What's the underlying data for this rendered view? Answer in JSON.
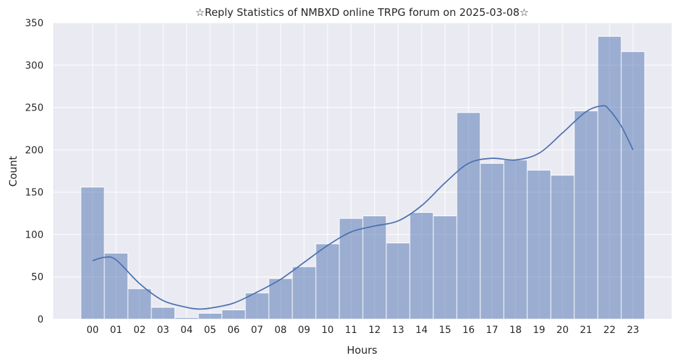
{
  "chart_data": {
    "type": "bar",
    "title": "☆Reply Statistics of NMBXD online TRPG forum on 2025-03-08☆",
    "xlabel": "Hours",
    "ylabel": "Count",
    "ylim": [
      0,
      350
    ],
    "yticks": [
      0,
      50,
      100,
      150,
      200,
      250,
      300,
      350
    ],
    "grid": true,
    "categories": [
      "00",
      "01",
      "02",
      "03",
      "04",
      "05",
      "06",
      "07",
      "08",
      "09",
      "10",
      "11",
      "12",
      "13",
      "14",
      "15",
      "16",
      "17",
      "18",
      "19",
      "20",
      "21",
      "22",
      "23"
    ],
    "values": [
      156,
      78,
      36,
      14,
      2,
      7,
      11,
      31,
      48,
      62,
      89,
      119,
      122,
      90,
      126,
      122,
      244,
      184,
      188,
      176,
      170,
      246,
      334,
      316
    ],
    "kde": {
      "x": [
        0,
        0.5,
        1,
        2,
        3,
        4,
        4.5,
        5,
        6,
        7,
        8,
        9,
        10,
        11,
        12,
        13,
        14,
        15,
        16,
        17,
        18,
        19,
        20,
        21,
        21.7,
        22,
        22.5,
        23
      ],
      "y": [
        69,
        73,
        70,
        42,
        22,
        14,
        12,
        13,
        19,
        32,
        47,
        67,
        87,
        103,
        110,
        116,
        134,
        161,
        184,
        190,
        188,
        196,
        220,
        245,
        252,
        247,
        228,
        200
      ]
    },
    "colors": {
      "bar": "#4c72b0",
      "line": "#4c72b0",
      "background": "#eaeaf2",
      "grid": "#ffffff"
    }
  }
}
